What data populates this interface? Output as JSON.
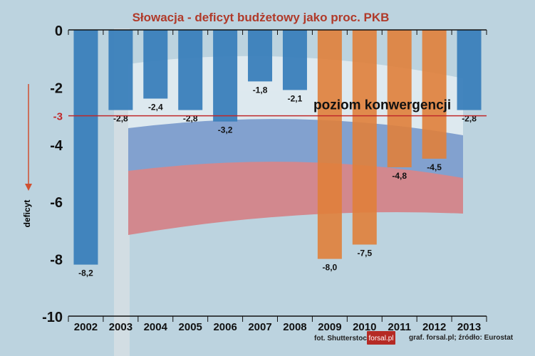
{
  "chart_data": {
    "type": "bar",
    "title": "Słowacja - deficyt budżetowy jako proc. PKB",
    "ylabel": "deficyt",
    "xlabel": "",
    "categories": [
      "2002",
      "2003",
      "2004",
      "2005",
      "2006",
      "2007",
      "2008",
      "2009",
      "2010",
      "2011",
      "2012",
      "2013"
    ],
    "values": [
      -8.2,
      -2.8,
      -2.4,
      -2.8,
      -3.2,
      -1.8,
      -2.1,
      -8.0,
      -7.5,
      -4.8,
      -4.5,
      -2.8
    ],
    "value_labels": [
      "-8,2",
      "-2,8",
      "-2,4",
      "-2,8",
      "-3,2",
      "-1,8",
      "-2,1",
      "-8,0",
      "-7,5",
      "-4,8",
      "-4,5",
      "-2,8"
    ],
    "highlighted": [
      false,
      false,
      false,
      false,
      false,
      false,
      false,
      true,
      true,
      true,
      true,
      false
    ],
    "ylim": [
      -10,
      0
    ],
    "yticks": [
      0,
      -2,
      -4,
      -6,
      -8,
      -10
    ],
    "ytick_labels": [
      "0",
      "-2",
      "-4",
      "-6",
      "-8",
      "-10"
    ],
    "grid": false,
    "reference_line": {
      "value": -3,
      "tick_label": "-3",
      "label": "poziom konwergencji",
      "color": "#c0282a"
    },
    "colors": {
      "bar": "#3a80ba",
      "highlight": "#e0803a",
      "title": "#b03a2a"
    }
  },
  "footer": {
    "photo_credit": "fot. Shutterstock",
    "logo": "forsal.pl",
    "source": "graf. forsal.pl;  źródło: Eurostat"
  }
}
